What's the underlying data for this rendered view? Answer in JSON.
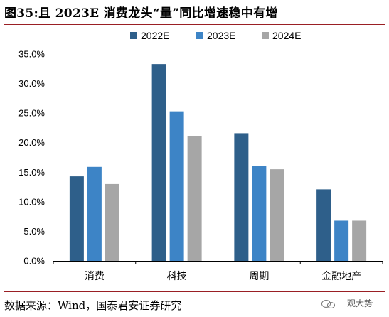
{
  "title": "图35:且 2023E 消费龙头“量”同比增速稳中有增",
  "source": "数据来源：Wind，国泰君安证券研究",
  "watermark": "一观大势",
  "colors": {
    "rule": "#9a1f24",
    "series": [
      "#2e5f8a",
      "#3d84c6",
      "#a6a6a6"
    ]
  },
  "chart_data": {
    "type": "bar",
    "categories": [
      "消费",
      "科技",
      "周期",
      "金融地产"
    ],
    "series": [
      {
        "name": "2022E",
        "values": [
          14.3,
          33.3,
          21.6,
          12.1
        ]
      },
      {
        "name": "2023E",
        "values": [
          15.9,
          25.3,
          16.1,
          6.8
        ]
      },
      {
        "name": "2024E",
        "values": [
          13.0,
          21.1,
          15.5,
          6.8
        ]
      }
    ],
    "yticks": [
      "0.0%",
      "5.0%",
      "10.0%",
      "15.0%",
      "20.0%",
      "25.0%",
      "30.0%",
      "35.0%"
    ],
    "ylim": [
      0,
      35
    ],
    "ystep": 5,
    "legend": "top-center",
    "grid": false
  }
}
